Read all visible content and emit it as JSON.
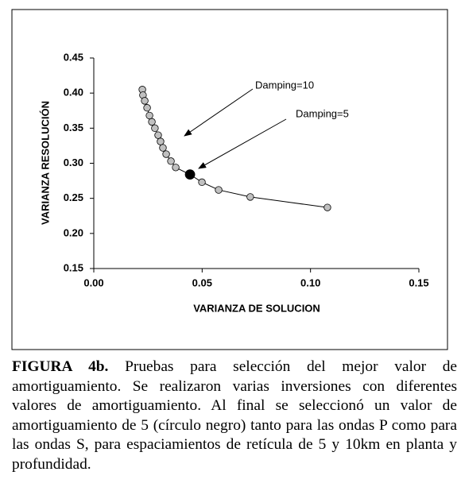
{
  "chart_data": {
    "type": "scatter",
    "xlabel": "VARIANZA DE SOLUCION",
    "ylabel": "VARIANZA RESOLUCIÓN",
    "xlim": [
      0,
      0.15
    ],
    "ylim": [
      0.15,
      0.45
    ],
    "xticks": [
      {
        "value": 0,
        "label": "0.00"
      },
      {
        "value": 0.05,
        "label": "0.05"
      },
      {
        "value": 0.1,
        "label": "0.10"
      },
      {
        "value": 0.15,
        "label": "0.15"
      }
    ],
    "yticks": [
      0.15,
      {
        "value": 0.2,
        "label": "0.20"
      },
      0.25,
      {
        "value": 0.3,
        "label": "0.30"
      },
      0.35,
      {
        "value": 0.4,
        "label": "0.40"
      },
      0.45
    ],
    "series": [
      {
        "color": "#c0c0c0",
        "x": [
          0.0224,
          0.0227,
          0.0235,
          0.0246,
          0.0257,
          0.0268,
          0.0282,
          0.0297,
          0.0308,
          0.0319,
          0.0334,
          0.0356,
          0.0378,
          0.0444,
          0.0499,
          0.0576,
          0.0722,
          0.1078
        ],
        "values": [
          0.405,
          0.397,
          0.389,
          0.379,
          0.368,
          0.359,
          0.35,
          0.34,
          0.331,
          0.322,
          0.313,
          0.303,
          0.294,
          0.284,
          0.273,
          0.262,
          0.252,
          0.237
        ]
      }
    ],
    "highlight": {
      "index": 13,
      "color": "#000000"
    },
    "annotations": [
      "Damping=10",
      "Damping=5"
    ]
  },
  "caption": {
    "label": "FIGURA 4b.",
    "text": "Pruebas para selección del mejor valor de amortiguamiento. Se realizaron varias inversiones con diferentes valores de amortiguamiento. Al final se seleccionó un valor de amortiguamiento de 5 (círculo negro) tanto para las ondas P como para las ondas S, para espaciamientos de retícula de 5 y 10km en planta y profundidad."
  }
}
